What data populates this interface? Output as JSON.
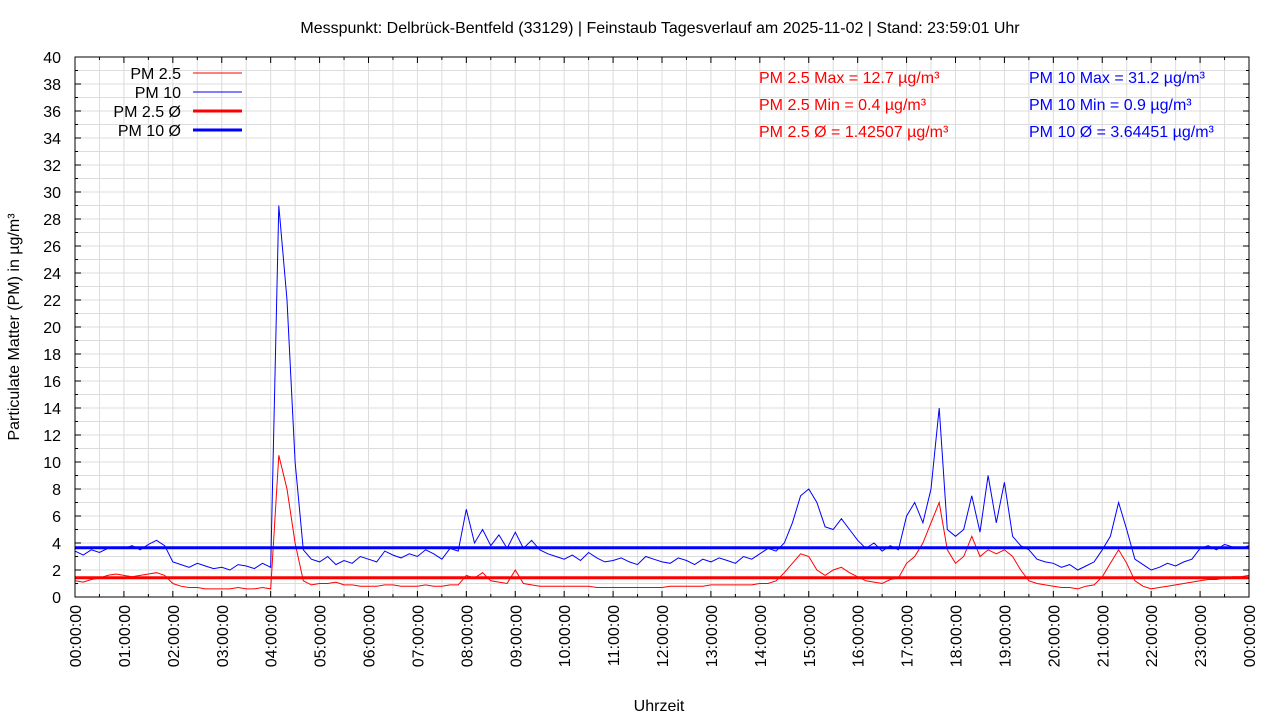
{
  "chart_data": {
    "type": "line",
    "title": "Messpunkt: Delbrück-Bentfeld (33129) | Feinstaub Tagesverlauf am 2025-11-02 | Stand: 23:59:01 Uhr",
    "xlabel": "Uhrzeit",
    "ylabel": "Particulate Matter (PM) in µg/m³",
    "ylim": [
      0,
      40
    ],
    "xlim_hours": [
      0,
      24
    ],
    "grid": true,
    "x_tick_labels": [
      "00:00:00",
      "01:00:00",
      "02:00:00",
      "03:00:00",
      "04:00:00",
      "05:00:00",
      "06:00:00",
      "07:00:00",
      "08:00:00",
      "09:00:00",
      "10:00:00",
      "11:00:00",
      "12:00:00",
      "13:00:00",
      "14:00:00",
      "15:00:00",
      "16:00:00",
      "17:00:00",
      "18:00:00",
      "19:00:00",
      "20:00:00",
      "21:00:00",
      "22:00:00",
      "23:00:00",
      "00:00:00"
    ],
    "y_ticks": [
      0,
      2,
      4,
      6,
      8,
      10,
      12,
      14,
      16,
      18,
      20,
      22,
      24,
      26,
      28,
      30,
      32,
      34,
      36,
      38,
      40
    ],
    "x_step_minutes": 10,
    "legend_position": "top-left",
    "legend": [
      {
        "label": "PM 2.5",
        "color": "#ff0000",
        "style": "thin"
      },
      {
        "label": "PM 10",
        "color": "#0000ff",
        "style": "thin"
      },
      {
        "label": "PM 2.5 Ø",
        "color": "#ff0000",
        "style": "thick"
      },
      {
        "label": "PM 10 Ø",
        "color": "#0000ff",
        "style": "thick"
      }
    ],
    "series": [
      {
        "name": "PM 10",
        "color": "#0000ff",
        "values": [
          3.4,
          3.1,
          3.5,
          3.3,
          3.6,
          3.7,
          3.6,
          3.8,
          3.5,
          3.9,
          4.2,
          3.8,
          2.6,
          2.4,
          2.2,
          2.5,
          2.3,
          2.1,
          2.2,
          2.0,
          2.4,
          2.3,
          2.1,
          2.5,
          2.2,
          29.0,
          22.0,
          10.0,
          3.5,
          2.8,
          2.6,
          3.0,
          2.4,
          2.7,
          2.5,
          3.0,
          2.8,
          2.6,
          3.4,
          3.1,
          2.9,
          3.2,
          3.0,
          3.5,
          3.2,
          2.8,
          3.6,
          3.4,
          6.5,
          4.0,
          5.0,
          3.8,
          4.6,
          3.6,
          4.8,
          3.6,
          4.2,
          3.5,
          3.2,
          3.0,
          2.8,
          3.1,
          2.7,
          3.3,
          2.9,
          2.6,
          2.7,
          2.9,
          2.6,
          2.4,
          3.0,
          2.8,
          2.6,
          2.5,
          2.9,
          2.7,
          2.4,
          2.8,
          2.6,
          2.9,
          2.7,
          2.5,
          3.0,
          2.8,
          3.2,
          3.6,
          3.4,
          4.0,
          5.5,
          7.5,
          8.0,
          7.0,
          5.2,
          5.0,
          5.8,
          5.0,
          4.2,
          3.6,
          4.0,
          3.4,
          3.8,
          3.5,
          6.0,
          7.0,
          5.5,
          8.0,
          14.0,
          5.0,
          4.5,
          5.0,
          7.5,
          4.8,
          9.0,
          5.5,
          8.5,
          4.5,
          3.8,
          3.5,
          2.8,
          2.6,
          2.5,
          2.2,
          2.4,
          2.0,
          2.3,
          2.6,
          3.5,
          4.5,
          7.0,
          5.0,
          2.8,
          2.4,
          2.0,
          2.2,
          2.5,
          2.3,
          2.6,
          2.8,
          3.6,
          3.8,
          3.5,
          3.9,
          3.7,
          3.6,
          3.8
        ]
      },
      {
        "name": "PM 2.5",
        "color": "#ff0000",
        "values": [
          1.2,
          1.1,
          1.3,
          1.4,
          1.6,
          1.7,
          1.6,
          1.5,
          1.6,
          1.7,
          1.8,
          1.6,
          1.0,
          0.8,
          0.7,
          0.7,
          0.6,
          0.6,
          0.6,
          0.6,
          0.7,
          0.6,
          0.6,
          0.7,
          0.6,
          10.5,
          8.0,
          4.0,
          1.2,
          0.9,
          1.0,
          1.0,
          1.1,
          0.9,
          0.9,
          0.8,
          0.8,
          0.8,
          0.9,
          0.9,
          0.8,
          0.8,
          0.8,
          0.9,
          0.8,
          0.8,
          0.9,
          0.9,
          1.6,
          1.4,
          1.8,
          1.2,
          1.1,
          1.0,
          2.0,
          1.0,
          0.9,
          0.8,
          0.8,
          0.8,
          0.8,
          0.8,
          0.8,
          0.8,
          0.7,
          0.7,
          0.7,
          0.7,
          0.7,
          0.7,
          0.7,
          0.7,
          0.7,
          0.8,
          0.8,
          0.8,
          0.8,
          0.8,
          0.9,
          0.9,
          0.9,
          0.9,
          0.9,
          0.9,
          1.0,
          1.0,
          1.2,
          1.8,
          2.5,
          3.2,
          3.0,
          2.0,
          1.6,
          2.0,
          2.2,
          1.8,
          1.5,
          1.2,
          1.1,
          1.0,
          1.3,
          1.4,
          2.5,
          3.0,
          4.0,
          5.5,
          7.0,
          3.5,
          2.5,
          3.0,
          4.5,
          3.0,
          3.5,
          3.2,
          3.5,
          3.0,
          2.0,
          1.2,
          1.0,
          0.9,
          0.8,
          0.7,
          0.7,
          0.6,
          0.8,
          0.9,
          1.5,
          2.5,
          3.5,
          2.5,
          1.2,
          0.8,
          0.6,
          0.7,
          0.8,
          0.9,
          1.0,
          1.1,
          1.2,
          1.3,
          1.3,
          1.4,
          1.5,
          1.5,
          1.6
        ]
      },
      {
        "name": "PM 2.5 Ø",
        "color": "#ff0000",
        "constant": 1.42507
      },
      {
        "name": "PM 10 Ø",
        "color": "#0000ff",
        "constant": 3.64451
      }
    ],
    "annotations": {
      "pm25": [
        "PM 2.5 Max = 12.7 µg/m³",
        "PM 2.5 Min = 0.4 µg/m³",
        "PM 2.5 Ø = 1.42507 µg/m³"
      ],
      "pm10": [
        "PM 10 Max = 31.2 µg/m³",
        "PM 10 Min = 0.9 µg/m³",
        "PM 10 Ø = 3.64451 µg/m³"
      ]
    }
  }
}
